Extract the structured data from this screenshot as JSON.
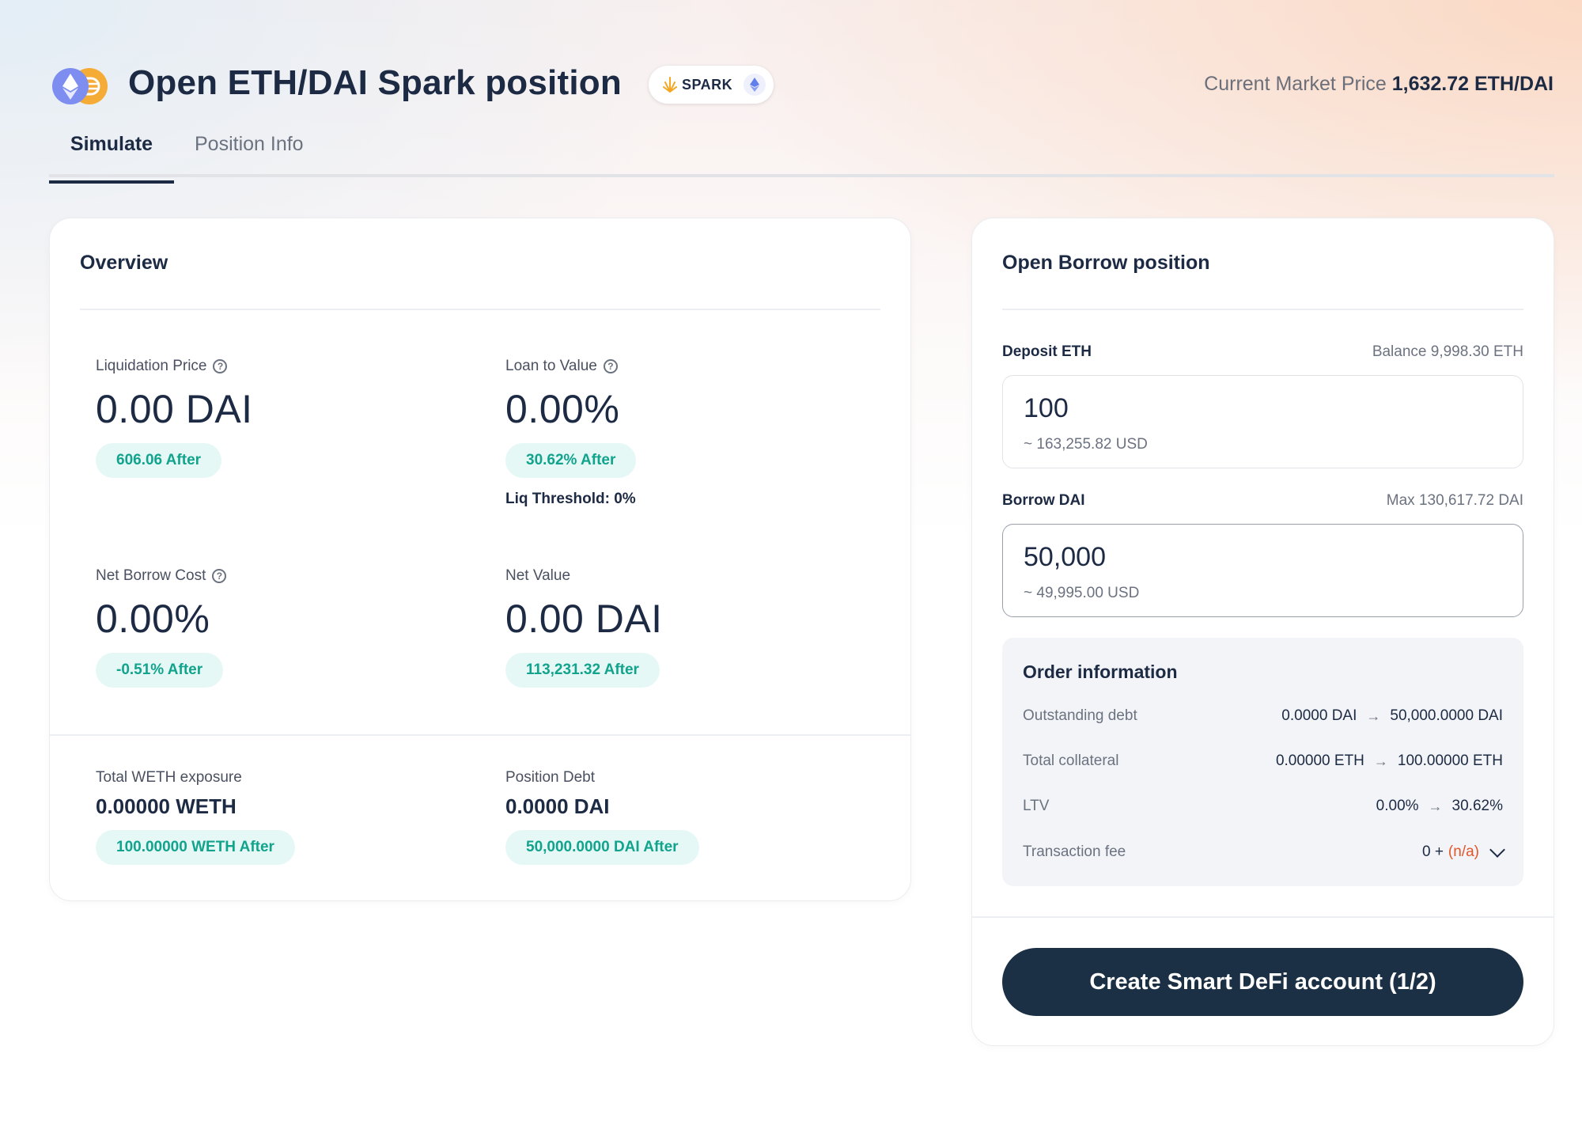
{
  "header": {
    "title": "Open ETH/DAI Spark position",
    "protocol_badge": "SPARK",
    "market_label": "Current Market Price",
    "market_value": "1,632.72 ETH/DAI"
  },
  "tabs": [
    {
      "label": "Simulate",
      "active": true
    },
    {
      "label": "Position Info",
      "active": false
    }
  ],
  "overview": {
    "title": "Overview",
    "liquidation_price": {
      "label": "Liquidation Price",
      "value": "0.00 DAI",
      "after": "606.06 After"
    },
    "loan_to_value": {
      "label": "Loan to Value",
      "value": "0.00%",
      "after": "30.62% After",
      "threshold": "Liq Threshold: 0%"
    },
    "net_borrow_cost": {
      "label": "Net Borrow Cost",
      "value": "0.00%",
      "after": "-0.51% After"
    },
    "net_value": {
      "label": "Net Value",
      "value": "0.00 DAI",
      "after": "113,231.32 After"
    },
    "total_weth_exposure": {
      "label": "Total WETH exposure",
      "value": "0.00000 WETH",
      "after": "100.00000 WETH After"
    },
    "position_debt": {
      "label": "Position Debt",
      "value": "0.0000 DAI",
      "after": "50,000.0000 DAI After"
    }
  },
  "borrow": {
    "title": "Open Borrow position",
    "deposit": {
      "label": "Deposit ETH",
      "balance": "Balance 9,998.30 ETH",
      "value": "100",
      "usd": "~ 163,255.82 USD"
    },
    "borrow": {
      "label": "Borrow DAI",
      "max": "Max 130,617.72 DAI",
      "value": "50,000",
      "usd": "~ 49,995.00 USD"
    },
    "order": {
      "title": "Order information",
      "rows": [
        {
          "key": "Outstanding debt",
          "from": "0.0000 DAI",
          "to": "50,000.0000 DAI"
        },
        {
          "key": "Total collateral",
          "from": "0.00000 ETH",
          "to": "100.00000 ETH"
        },
        {
          "key": "LTV",
          "from": "0.00%",
          "to": "30.62%"
        }
      ],
      "fee": {
        "key": "Transaction fee",
        "value": "0 +",
        "na": "(n/a)"
      }
    },
    "cta_label": "Create Smart DeFi account (1/2)"
  },
  "colors": {
    "accent": "#1b3045",
    "positive": "#12a38d",
    "positive_bg": "#e5f8f6",
    "warning": "#e2552b"
  }
}
